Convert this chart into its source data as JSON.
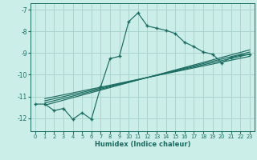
{
  "title": "",
  "xlabel": "Humidex (Indice chaleur)",
  "bg_color": "#cceee8",
  "grid_color": "#aad4ce",
  "line_color": "#1a6b60",
  "xlim": [
    -0.5,
    23.5
  ],
  "ylim": [
    -12.6,
    -6.7
  ],
  "xticks": [
    0,
    1,
    2,
    3,
    4,
    5,
    6,
    7,
    8,
    9,
    10,
    11,
    12,
    13,
    14,
    15,
    16,
    17,
    18,
    19,
    20,
    21,
    22,
    23
  ],
  "yticks": [
    -7,
    -8,
    -9,
    -10,
    -11,
    -12
  ],
  "main_x": [
    0,
    1,
    2,
    3,
    4,
    5,
    6,
    7,
    8,
    9,
    10,
    11,
    12,
    13,
    14,
    15,
    16,
    17,
    18,
    19,
    20,
    21,
    22,
    23
  ],
  "main_y": [
    -11.35,
    -11.35,
    -11.65,
    -11.55,
    -12.05,
    -11.75,
    -12.05,
    -10.55,
    -9.25,
    -9.15,
    -7.55,
    -7.15,
    -7.75,
    -7.85,
    -7.95,
    -8.1,
    -8.5,
    -8.7,
    -8.95,
    -9.05,
    -9.45,
    -9.2,
    -9.1,
    -9.05
  ],
  "reg_lines": [
    {
      "x": [
        1,
        23
      ],
      "y": [
        -11.4,
        -8.85
      ]
    },
    {
      "x": [
        1,
        23
      ],
      "y": [
        -11.3,
        -8.95
      ]
    },
    {
      "x": [
        1,
        23
      ],
      "y": [
        -11.2,
        -9.05
      ]
    },
    {
      "x": [
        1,
        23
      ],
      "y": [
        -11.1,
        -9.15
      ]
    }
  ]
}
